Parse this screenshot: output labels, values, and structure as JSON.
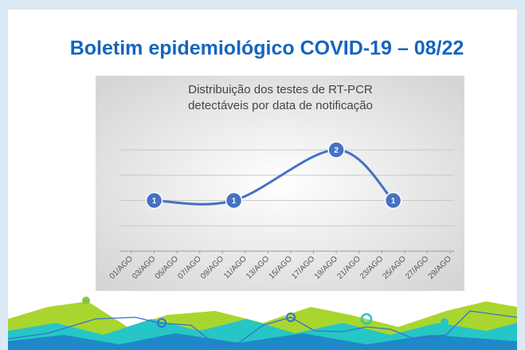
{
  "header": {
    "title": "Boletim epidemiológico COVID-19 – 08/22"
  },
  "chart_data": {
    "type": "line",
    "title": [
      "Distribuição dos testes de RT-PCR",
      "detectáveis por data de notificação"
    ],
    "x": [
      3,
      10,
      19,
      24
    ],
    "series": [
      {
        "color": "#4472c4",
        "values": [
          1,
          1,
          2,
          1
        ]
      }
    ],
    "xlim": [
      1,
      29
    ],
    "xticks": [
      {
        "value": 1,
        "label": "01/AGO"
      },
      {
        "value": 3,
        "label": "03/AGO"
      },
      {
        "value": 5,
        "label": "05/AGO"
      },
      {
        "value": 7,
        "label": "07/AGO"
      },
      {
        "value": 9,
        "label": "09/AGO"
      },
      {
        "value": 11,
        "label": "11/AGO"
      },
      {
        "value": 13,
        "label": "13/AGO"
      },
      {
        "value": 15,
        "label": "15/AGO"
      },
      {
        "value": 17,
        "label": "17/AGO"
      },
      {
        "value": 19,
        "label": "19/AGO"
      },
      {
        "value": 21,
        "label": "21/AGO"
      },
      {
        "value": 23,
        "label": "23/AGO"
      },
      {
        "value": 25,
        "label": "25/AGO"
      },
      {
        "value": 27,
        "label": "27/AGO"
      },
      {
        "value": 29,
        "label": "29/AGO"
      }
    ],
    "ylim": [
      0,
      2
    ],
    "yticks": [
      0,
      0.5,
      1,
      1.5,
      2
    ],
    "grid": true,
    "smooth": true
  }
}
